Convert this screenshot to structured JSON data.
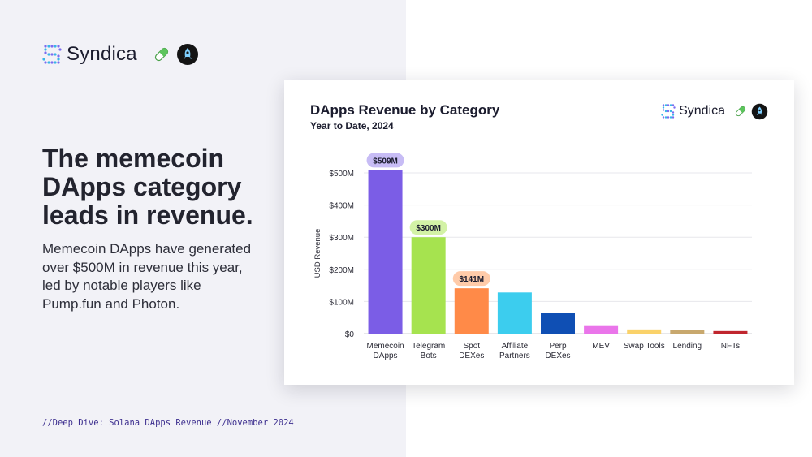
{
  "brand": {
    "name": "Syndica",
    "logo_color_1": "#7c6cf0",
    "logo_color_2": "#39b6e8",
    "pill_colors": [
      "#5cc45c",
      "#e8f7e8"
    ],
    "rocket_bg": "#141414",
    "rocket_color": "#7fd0ff"
  },
  "headline": {
    "lines": [
      "The memecoin",
      "DApps category",
      "leads in revenue."
    ]
  },
  "description": {
    "lines": [
      "Memecoin DApps have generated",
      "over $500M in revenue this year,",
      "led by notable players like",
      "Pump.fun and Photon."
    ]
  },
  "footer": {
    "text": "//Deep Dive: Solana DApps Revenue //November 2024"
  },
  "chart_data": {
    "type": "bar",
    "title": "DApps Revenue by Category",
    "subtitle": "Year to Date, 2024",
    "ylabel": "USD Revenue",
    "xlabel": "",
    "ylim": [
      0,
      500
    ],
    "yticks": [
      {
        "value": 0,
        "label": "$0"
      },
      {
        "value": 100,
        "label": "$100M"
      },
      {
        "value": 200,
        "label": "$200M"
      },
      {
        "value": 300,
        "label": "$300M"
      },
      {
        "value": 400,
        "label": "$400M"
      },
      {
        "value": 500,
        "label": "$500M"
      }
    ],
    "grid": true,
    "bars": [
      {
        "category": "Memecoin DApps",
        "lines": [
          "Memecoin",
          "DApps"
        ],
        "value": 509,
        "color": "#7b5de6",
        "label": "$509M",
        "label_bg": "#c7bcf5"
      },
      {
        "category": "Telegram Bots",
        "lines": [
          "Telegram",
          "Bots"
        ],
        "value": 300,
        "color": "#a6e34f",
        "label": "$300M",
        "label_bg": "#d3f2a6"
      },
      {
        "category": "Spot DEXes",
        "lines": [
          "Spot",
          "DEXes"
        ],
        "value": 141,
        "color": "#ff8a48",
        "label": "$141M",
        "label_bg": "#ffcba9"
      },
      {
        "category": "Affiliate Partners",
        "lines": [
          "Affiliate",
          "Partners"
        ],
        "value": 128,
        "color": "#3ccdee"
      },
      {
        "category": "Perp DEXes",
        "lines": [
          "Perp",
          "DEXes"
        ],
        "value": 65,
        "color": "#0f4fb4"
      },
      {
        "category": "MEV",
        "lines": [
          "MEV"
        ],
        "value": 26,
        "color": "#ea75ea"
      },
      {
        "category": "Swap Tools",
        "lines": [
          "Swap Tools"
        ],
        "value": 13,
        "color": "#fad26a"
      },
      {
        "category": "Lending",
        "lines": [
          "Lending"
        ],
        "value": 11,
        "color": "#c8a86e"
      },
      {
        "category": "NFTs",
        "lines": [
          "NFTs"
        ],
        "value": 8,
        "color": "#c0262e"
      }
    ]
  }
}
